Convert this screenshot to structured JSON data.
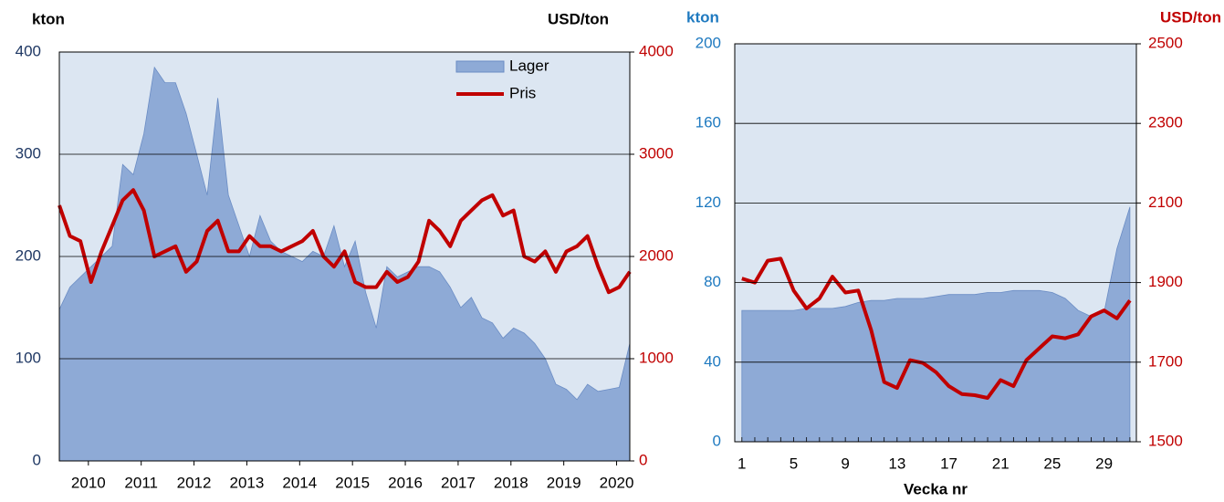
{
  "chart_data": [
    {
      "type": "area_line",
      "y_label": "kton",
      "y2_label": "USD/ton",
      "x": [
        2009.45,
        2009.65,
        2009.85,
        2010.05,
        2010.25,
        2010.45,
        2010.65,
        2010.85,
        2011.05,
        2011.25,
        2011.45,
        2011.65,
        2011.85,
        2012.05,
        2012.25,
        2012.45,
        2012.65,
        2012.85,
        2013.05,
        2013.25,
        2013.45,
        2013.65,
        2013.85,
        2014.05,
        2014.25,
        2014.45,
        2014.65,
        2014.85,
        2015.05,
        2015.25,
        2015.45,
        2015.65,
        2015.85,
        2016.05,
        2016.25,
        2016.45,
        2016.65,
        2016.85,
        2017.05,
        2017.25,
        2017.45,
        2017.65,
        2017.85,
        2018.05,
        2018.25,
        2018.45,
        2018.65,
        2018.85,
        2019.05,
        2019.25,
        2019.45,
        2019.65,
        2019.85,
        2020.05,
        2020.25
      ],
      "xlim": [
        2009.45,
        2020.25
      ],
      "xticks": [
        2010,
        2011,
        2012,
        2013,
        2014,
        2015,
        2016,
        2017,
        2018,
        2019,
        2020
      ],
      "ylim": [
        0,
        400
      ],
      "yticks": [
        0,
        100,
        200,
        300,
        400
      ],
      "y2lim": [
        0,
        4000
      ],
      "y2ticks": [
        0,
        1000,
        2000,
        3000,
        4000
      ],
      "grid": true,
      "legend": "upper right",
      "series": [
        {
          "name": "Lager",
          "kind": "area",
          "color": "#8eaad6",
          "values": [
            148,
            170,
            180,
            190,
            200,
            210,
            290,
            280,
            320,
            385,
            370,
            370,
            340,
            300,
            260,
            355,
            260,
            230,
            200,
            240,
            215,
            205,
            200,
            195,
            205,
            200,
            230,
            190,
            215,
            165,
            130,
            190,
            180,
            185,
            190,
            190,
            185,
            170,
            150,
            160,
            140,
            135,
            120,
            130,
            125,
            115,
            100,
            75,
            70,
            60,
            75,
            68,
            70,
            72,
            115
          ]
        },
        {
          "name": "Pris",
          "kind": "line",
          "axis": "y2",
          "color": "#c00000",
          "values": [
            2500,
            2200,
            2150,
            1750,
            2050,
            2300,
            2550,
            2650,
            2450,
            2000,
            2050,
            2100,
            1850,
            1950,
            2250,
            2350,
            2050,
            2050,
            2200,
            2100,
            2100,
            2050,
            2100,
            2150,
            2250,
            2000,
            1900,
            2050,
            1750,
            1700,
            1700,
            1850,
            1750,
            1800,
            1950,
            2350,
            2250,
            2100,
            2350,
            2450,
            2550,
            2600,
            2400,
            2450,
            2000,
            1950,
            2050,
            1850,
            2050,
            2100,
            2200,
            1900,
            1650,
            1700,
            1850
          ]
        }
      ]
    },
    {
      "type": "area_line",
      "y_label": "kton",
      "y2_label": "USD/ton",
      "x_label": "Vecka nr",
      "x": [
        1,
        2,
        3,
        4,
        5,
        6,
        7,
        8,
        9,
        10,
        11,
        12,
        13,
        14,
        15,
        16,
        17,
        18,
        19,
        20,
        21,
        22,
        23,
        24,
        25,
        26,
        27,
        28,
        29,
        30,
        31
      ],
      "xlim": [
        0.45,
        31.5
      ],
      "xticks": [
        1,
        5,
        9,
        13,
        17,
        21,
        25,
        29
      ],
      "ylim": [
        0,
        200
      ],
      "yticks": [
        0,
        40,
        80,
        120,
        160,
        200
      ],
      "y2lim": [
        1500,
        2500
      ],
      "y2ticks": [
        1500,
        1700,
        1900,
        2100,
        2300,
        2500
      ],
      "grid": true,
      "series": [
        {
          "kind": "area",
          "color": "#8eaad6",
          "values": [
            66,
            66,
            66,
            66,
            66,
            67,
            67,
            67,
            68,
            70,
            71,
            71,
            72,
            72,
            72,
            73,
            74,
            74,
            74,
            75,
            75,
            76,
            76,
            76,
            75,
            72,
            66,
            63,
            65,
            97,
            118
          ]
        },
        {
          "kind": "line",
          "axis": "y2",
          "color": "#c00000",
          "values": [
            1910,
            1900,
            1955,
            1960,
            1880,
            1835,
            1860,
            1915,
            1875,
            1880,
            1780,
            1650,
            1635,
            1705,
            1698,
            1675,
            1640,
            1620,
            1617,
            1610,
            1655,
            1640,
            1705,
            1735,
            1765,
            1760,
            1770,
            1815,
            1830,
            1810,
            1855
          ]
        }
      ]
    }
  ]
}
